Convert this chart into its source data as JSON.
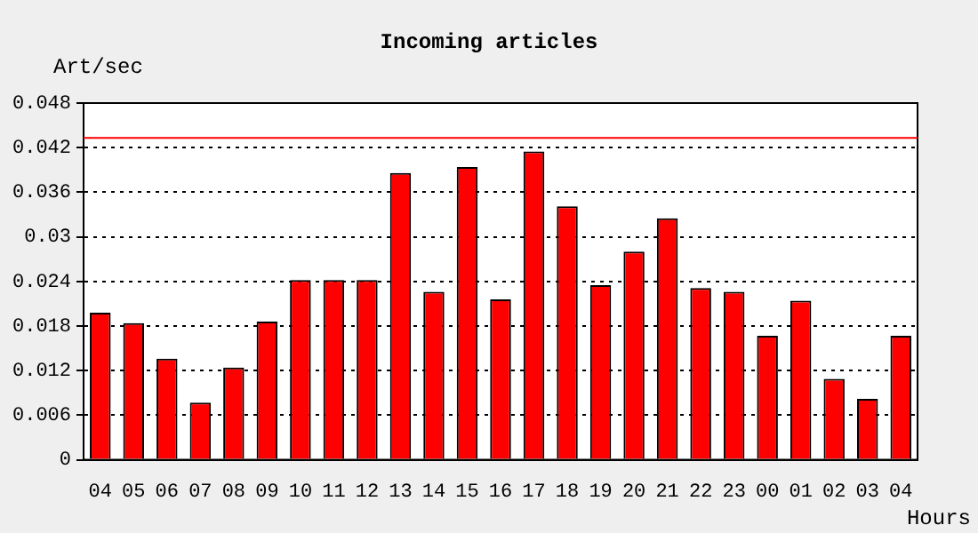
{
  "chart_data": {
    "type": "bar",
    "title": "Incoming articles",
    "ylabel": "Art/sec",
    "xlabel": "Hours",
    "categories": [
      "04",
      "05",
      "06",
      "07",
      "08",
      "09",
      "10",
      "11",
      "12",
      "13",
      "14",
      "15",
      "16",
      "17",
      "18",
      "19",
      "20",
      "21",
      "22",
      "23",
      "00",
      "01",
      "02",
      "03",
      "04"
    ],
    "values": [
      0.0198,
      0.0184,
      0.0136,
      0.0077,
      0.0124,
      0.0186,
      0.0242,
      0.0242,
      0.0242,
      0.0386,
      0.0226,
      0.0394,
      0.0216,
      0.0415,
      0.0341,
      0.0235,
      0.028,
      0.0325,
      0.0231,
      0.0226,
      0.0167,
      0.0214,
      0.0109,
      0.0082,
      0.0167
    ],
    "color": "#ff0000",
    "ylim": [
      0,
      0.048
    ],
    "yticks": [
      0,
      0.006,
      0.012,
      0.018,
      0.024,
      0.03,
      0.036,
      0.042,
      0.048
    ],
    "ref_lines": [
      {
        "axis": "y",
        "value": 0.0433,
        "color": "#ff0000",
        "line_style": "solid"
      }
    ],
    "grid": "y",
    "legend": false
  }
}
